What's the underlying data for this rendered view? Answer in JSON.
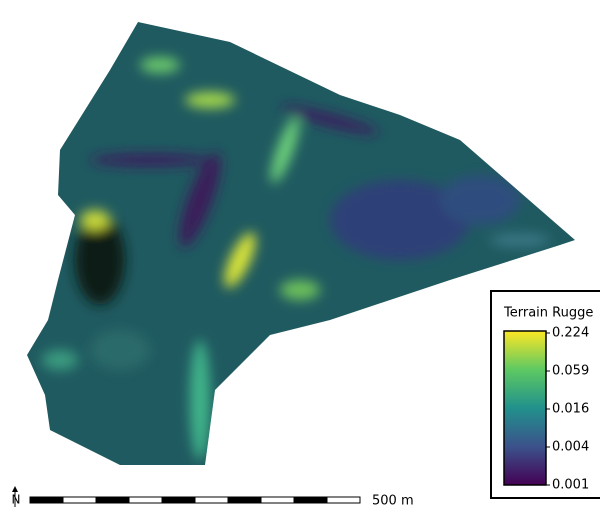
{
  "map": {
    "legend": {
      "title": "Terrain Rugge",
      "ticks": [
        0.224,
        0.059,
        0.016,
        0.004,
        0.001
      ]
    },
    "scale_bar": {
      "label": "500 m"
    },
    "north_arrow": "N"
  }
}
